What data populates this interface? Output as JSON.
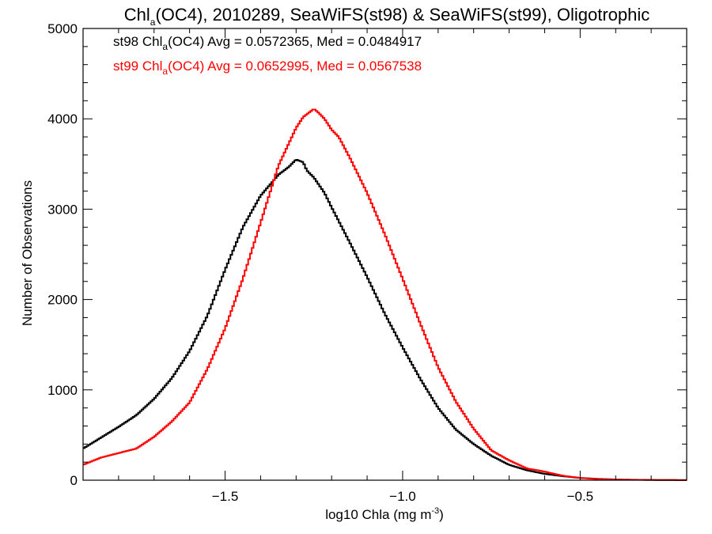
{
  "chart_data": {
    "type": "line",
    "title": {
      "main": "Chl",
      "sub": "a",
      "rest": "(OC4), 2010289, SeaWiFS(st98) & SeaWiFS(st99), Oligotrophic"
    },
    "xlabel": {
      "main": "log10 Chla (mg m",
      "sup": "-3",
      "end": ")"
    },
    "ylabel": "Number of Observations",
    "xlim": [
      -1.9,
      -0.2
    ],
    "ylim": [
      0,
      5000
    ],
    "x_ticks": [
      -1.5,
      -1.0,
      -0.5
    ],
    "x_tick_labels": [
      "−1.5",
      "−1.0",
      "−0.5"
    ],
    "y_ticks": [
      0,
      1000,
      2000,
      3000,
      4000,
      5000
    ],
    "y_tick_labels": [
      "0",
      "1000",
      "2000",
      "3000",
      "4000",
      "5000"
    ],
    "annotations": [
      {
        "pre": "st98 Chl",
        "sub": "a",
        "post": "(OC4) Avg = 0.0572365, Med = 0.0484917",
        "color": "#000000"
      },
      {
        "pre": "st99 Chl",
        "sub": "a",
        "post": "(OC4) Avg = 0.0652995, Med = 0.0567538",
        "color": "#ff0000"
      }
    ],
    "series": [
      {
        "name": "st98",
        "color": "#000000",
        "x": [
          -1.9,
          -1.85,
          -1.8,
          -1.75,
          -1.7,
          -1.65,
          -1.6,
          -1.55,
          -1.5,
          -1.45,
          -1.4,
          -1.35,
          -1.32,
          -1.3,
          -1.28,
          -1.27,
          -1.25,
          -1.22,
          -1.2,
          -1.15,
          -1.1,
          -1.05,
          -1.0,
          -0.95,
          -0.9,
          -0.85,
          -0.8,
          -0.75,
          -0.7,
          -0.65,
          -0.6,
          -0.55,
          -0.5,
          -0.45,
          -0.4,
          -0.3,
          -0.2
        ],
        "y": [
          350,
          470,
          590,
          720,
          900,
          1130,
          1430,
          1820,
          2330,
          2800,
          3150,
          3380,
          3470,
          3550,
          3520,
          3430,
          3350,
          3180,
          3020,
          2640,
          2250,
          1840,
          1470,
          1120,
          800,
          560,
          400,
          270,
          170,
          110,
          70,
          45,
          25,
          15,
          8,
          3,
          1
        ]
      },
      {
        "name": "st99",
        "color": "#ff0000",
        "x": [
          -1.9,
          -1.85,
          -1.8,
          -1.75,
          -1.7,
          -1.65,
          -1.6,
          -1.55,
          -1.5,
          -1.45,
          -1.4,
          -1.35,
          -1.3,
          -1.28,
          -1.26,
          -1.25,
          -1.24,
          -1.22,
          -1.2,
          -1.18,
          -1.15,
          -1.1,
          -1.05,
          -1.0,
          -0.95,
          -0.9,
          -0.85,
          -0.8,
          -0.75,
          -0.7,
          -0.65,
          -0.62,
          -0.6,
          -0.55,
          -0.5,
          -0.45,
          -0.4,
          -0.3,
          -0.2
        ],
        "y": [
          170,
          250,
          300,
          350,
          480,
          650,
          860,
          1230,
          1680,
          2230,
          2850,
          3480,
          3900,
          4020,
          4080,
          4110,
          4080,
          4000,
          3880,
          3800,
          3580,
          3180,
          2720,
          2230,
          1730,
          1250,
          870,
          570,
          330,
          220,
          130,
          110,
          95,
          50,
          25,
          12,
          6,
          3,
          1
        ]
      }
    ]
  }
}
